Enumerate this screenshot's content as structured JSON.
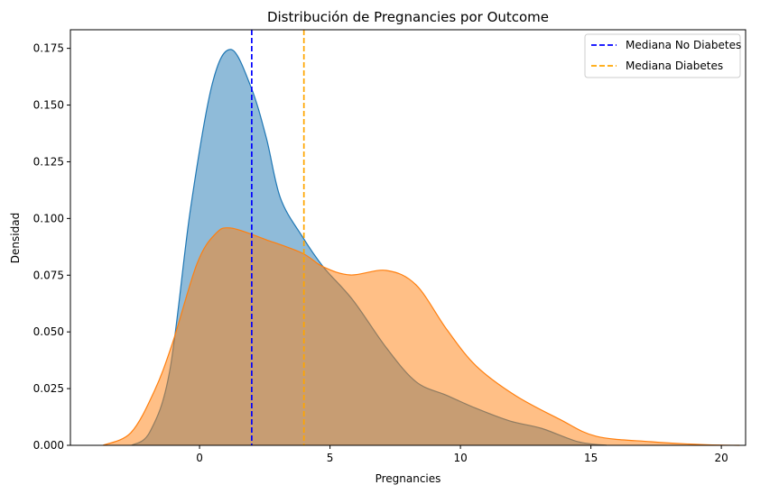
{
  "chart_data": {
    "type": "area",
    "title": "Distribución de Pregnancies por Outcome",
    "xlabel": "Pregnancies",
    "ylabel": "Densidad",
    "xlim": [
      -4.95,
      20.93
    ],
    "ylim": [
      0,
      0.1832
    ],
    "xticks": [
      0,
      5,
      10,
      15,
      20
    ],
    "xtick_labels": [
      "0",
      "5",
      "10",
      "15",
      "20"
    ],
    "yticks": [
      0,
      0.025,
      0.05,
      0.075,
      0.1,
      0.125,
      0.15,
      0.175
    ],
    "ytick_labels": [
      "0.000",
      "0.025",
      "0.050",
      "0.075",
      "0.100",
      "0.125",
      "0.150",
      "0.175"
    ],
    "grid": false,
    "legend_position": "top-right",
    "series": [
      {
        "color": "#1f77b4",
        "x": [
          -2.6,
          -1.9,
          -1.14,
          -0.35,
          0.48,
          1.2,
          1.97,
          2.56,
          3.1,
          3.94,
          4.74,
          5.88,
          7.16,
          8.3,
          9.48,
          10.6,
          11.9,
          13.1,
          14.5,
          15.6
        ],
        "y": [
          0,
          0.006,
          0.033,
          0.104,
          0.159,
          0.1745,
          0.158,
          0.1355,
          0.109,
          0.092,
          0.0787,
          0.064,
          0.043,
          0.028,
          0.022,
          0.0163,
          0.0107,
          0.0075,
          0.0016,
          0
        ]
      },
      {
        "color": "#ff7f0e",
        "x": [
          -3.7,
          -2.63,
          -1.73,
          -1.04,
          -0.1,
          0.59,
          1.2,
          2.56,
          3.94,
          4.74,
          5.78,
          7.16,
          8.3,
          9.48,
          10.6,
          12.1,
          13.8,
          15.2,
          17.3,
          19.3,
          20.7
        ],
        "y": [
          0,
          0.0056,
          0.024,
          0.045,
          0.08,
          0.093,
          0.0958,
          0.0906,
          0.0847,
          0.0787,
          0.0751,
          0.0771,
          0.0707,
          0.051,
          0.035,
          0.022,
          0.0115,
          0.004,
          0.0016,
          0.0003,
          0
        ]
      }
    ],
    "vlines": [
      {
        "name": "Mediana No Diabetes",
        "x": 2,
        "color": "#0000ff"
      },
      {
        "name": "Mediana Diabetes",
        "x": 4,
        "color": "#ffa500"
      }
    ]
  }
}
